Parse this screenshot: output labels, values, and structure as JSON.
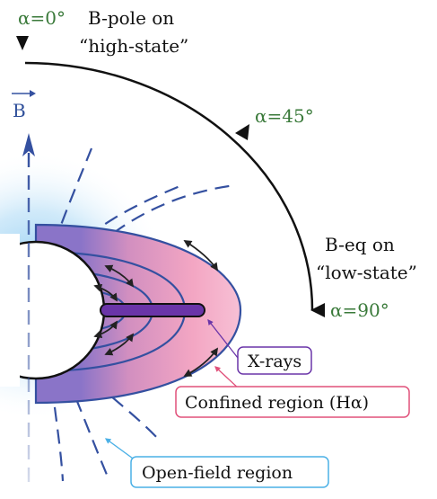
{
  "labels": {
    "alpha_0": "α=0°",
    "pole_line1": "B-pole on",
    "pole_line2": "“high-state”",
    "alpha_45": "α=45°",
    "eq_line1": "B-eq on",
    "eq_line2": "“low-state”",
    "alpha_90": "α=90°",
    "b_vector": "B",
    "xrays": "X-rays",
    "confined": "Confined region (Hα)",
    "open_field": "Open-field region"
  },
  "colors": {
    "black": "#111111",
    "green": "#3a7a3a",
    "field_blue": "#3450a0",
    "xray_purple": "#6a35a8",
    "confined_pink": "#e0507a",
    "open_blue": "#4ab0e6"
  }
}
